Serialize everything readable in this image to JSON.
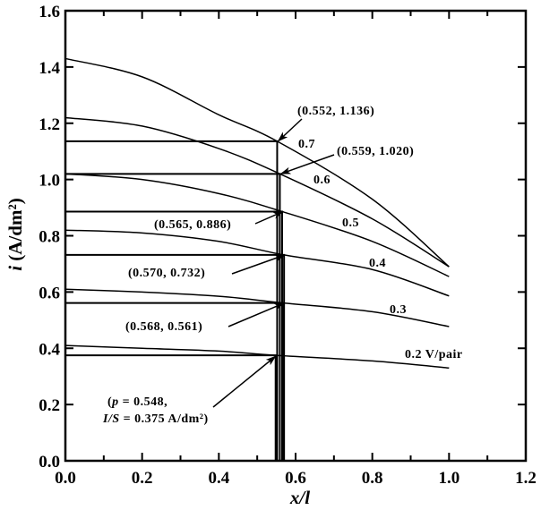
{
  "chart_data": {
    "type": "line",
    "title": "",
    "xlabel": "x/l",
    "ylabel_italic": "i",
    "ylabel_units": " (A/dm²)",
    "xlim": [
      0,
      1.2
    ],
    "ylim": [
      0,
      1.6
    ],
    "xticks": [
      "0.0",
      "0.2",
      "0.4",
      "0.6",
      "0.8",
      "1.0",
      "1.2"
    ],
    "yticks": [
      "0.0",
      "0.2",
      "0.4",
      "0.6",
      "0.8",
      "1.0",
      "1.2",
      "1.4",
      "1.6"
    ],
    "grid": false,
    "series": [
      {
        "name": "0.7",
        "x": [
          0,
          0.2,
          0.4,
          0.552,
          0.8,
          1.0
        ],
        "y": [
          1.43,
          1.365,
          1.23,
          1.136,
          0.93,
          0.69
        ]
      },
      {
        "name": "0.6",
        "x": [
          0,
          0.2,
          0.4,
          0.559,
          0.8,
          1.0
        ],
        "y": [
          1.22,
          1.19,
          1.11,
          1.02,
          0.86,
          0.69
        ]
      },
      {
        "name": "0.5",
        "x": [
          0,
          0.2,
          0.4,
          0.565,
          0.8,
          1.0
        ],
        "y": [
          1.02,
          1.0,
          0.95,
          0.886,
          0.78,
          0.655
        ]
      },
      {
        "name": "0.4",
        "x": [
          0,
          0.2,
          0.4,
          0.57,
          0.8,
          1.0
        ],
        "y": [
          0.82,
          0.81,
          0.78,
          0.732,
          0.68,
          0.586
        ]
      },
      {
        "name": "0.3",
        "x": [
          0,
          0.2,
          0.4,
          0.568,
          0.8,
          1.0
        ],
        "y": [
          0.61,
          0.6,
          0.585,
          0.561,
          0.53,
          0.477
        ]
      },
      {
        "name": "0.2 V/pair",
        "x": [
          0,
          0.2,
          0.4,
          0.548,
          0.8,
          1.0
        ],
        "y": [
          0.41,
          0.4,
          0.39,
          0.375,
          0.355,
          0.33
        ]
      }
    ],
    "marked_points": [
      {
        "x": 0.552,
        "y": 1.136,
        "label": "(0.552, 1.136)"
      },
      {
        "x": 0.559,
        "y": 1.02,
        "label": "(0.559, 1.020)"
      },
      {
        "x": 0.565,
        "y": 0.886,
        "label": "(0.565, 0.886)"
      },
      {
        "x": 0.57,
        "y": 0.732,
        "label": "(0.570, 0.732)"
      },
      {
        "x": 0.568,
        "y": 0.561,
        "label": "(0.568, 0.561)"
      },
      {
        "x": 0.548,
        "y": 0.375,
        "label_line1_italic": "p",
        "label_line1": " = 0.548,",
        "label_line2_italic": "I/S",
        "label_line2": " = 0.375 A/dm²)",
        "label_prefix": "("
      }
    ]
  }
}
